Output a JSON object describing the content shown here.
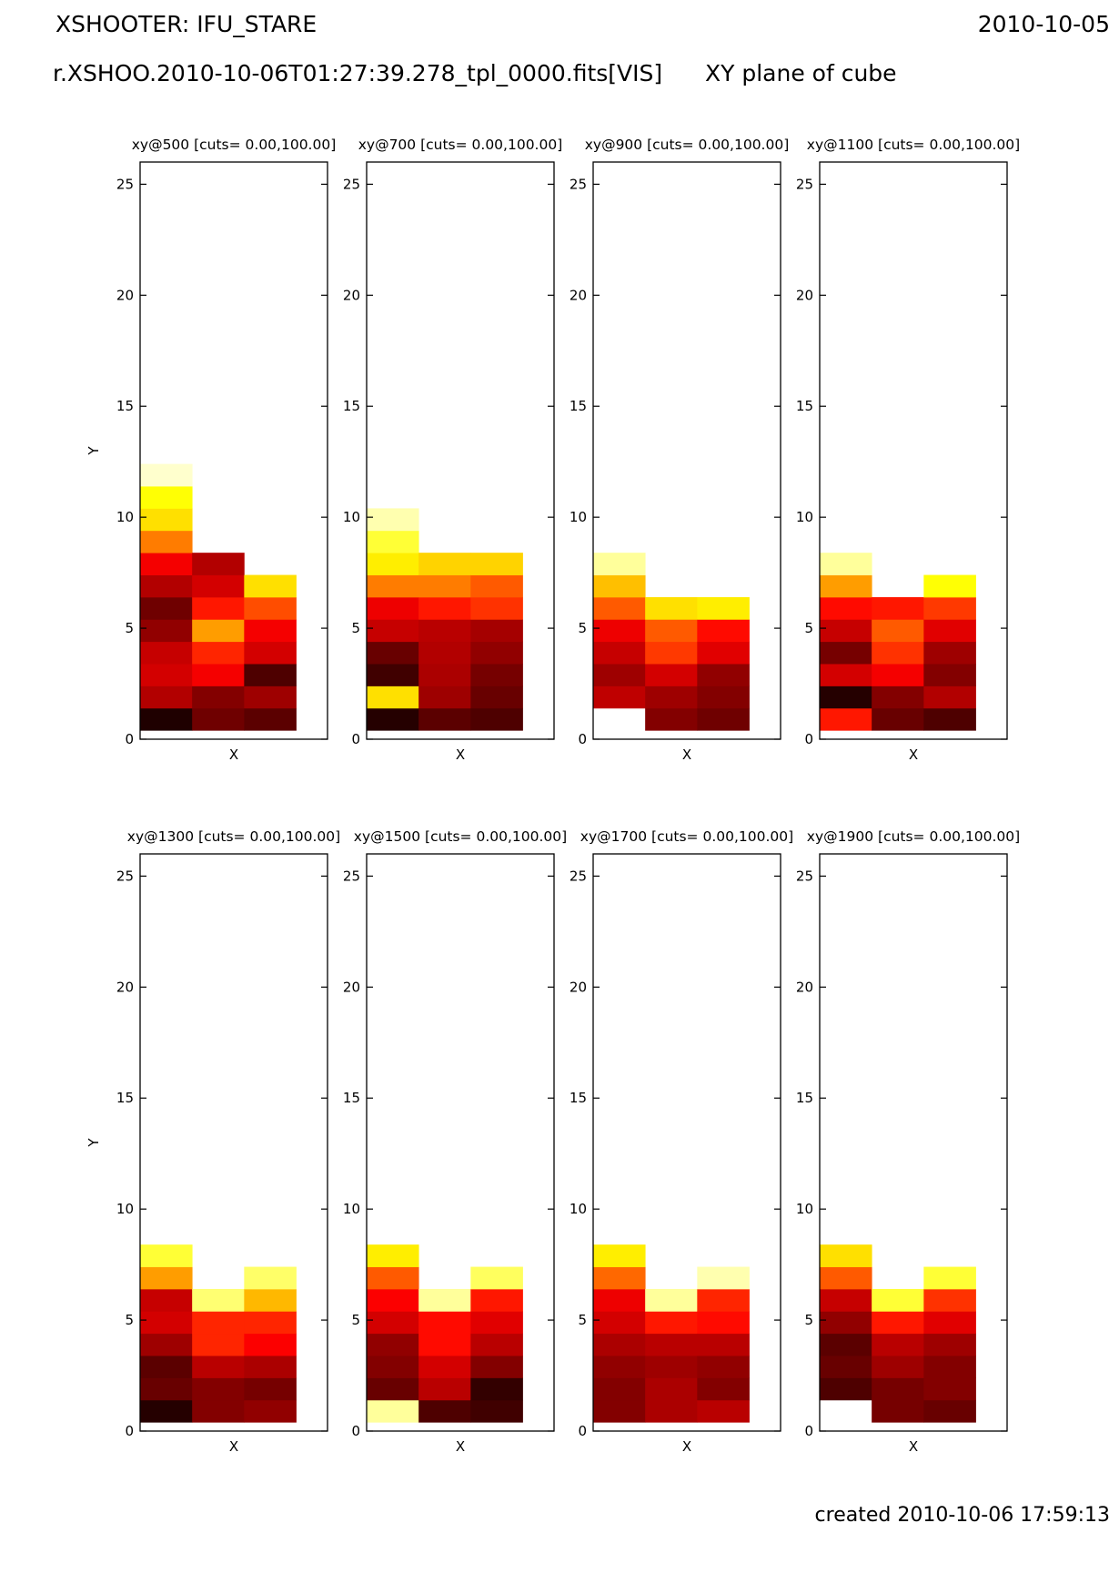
{
  "header": {
    "title": "XSHOOTER: IFU_STARE",
    "date": "2010-10-05",
    "file": "r.XSHOO.2010-10-06T01:27:39.278_tpl_0000.fits[VIS]",
    "plane": "XY plane of cube"
  },
  "footer": {
    "created": "created 2010-10-06 17:59:13"
  },
  "colors": {
    "map": "hot"
  },
  "chart_data": [
    {
      "type": "heatmap",
      "title": "xy@500 [cuts= 0.00,100.00]",
      "xlabel": "X",
      "ylabel": "Y",
      "xlim": [
        0,
        1.2
      ],
      "ylim": [
        0,
        26
      ],
      "yticks": [
        0,
        5,
        10,
        15,
        20,
        25
      ],
      "cuts": [
        0,
        100
      ],
      "columns_left_to_right": [
        [
          3,
          25,
          30,
          28,
          20,
          15,
          25,
          35,
          55,
          70,
          75,
          95,
          100,
          100,
          100,
          100,
          100,
          100,
          100,
          100,
          100,
          100,
          100,
          100,
          100,
          100
        ],
        [
          15,
          18,
          35,
          42,
          60,
          40,
          30,
          25,
          100,
          100,
          100,
          100,
          100,
          100,
          100,
          100,
          100,
          100,
          100,
          100,
          100,
          100,
          100,
          100,
          100,
          100
        ],
        [
          12,
          22,
          10,
          30,
          35,
          48,
          70,
          100,
          100,
          100,
          100,
          100,
          100,
          100,
          100,
          100,
          100,
          100,
          100,
          100,
          100,
          100,
          100,
          100,
          100,
          100
        ]
      ],
      "notes": "bottom-to-top rows 0..25; column order left X bin, middle, right"
    },
    {
      "type": "heatmap",
      "title": "xy@700 [cuts= 0.00,100.00]",
      "xlabel": "X",
      "ylabel": "",
      "xlim": [
        0,
        1.2
      ],
      "ylim": [
        0,
        26
      ],
      "yticks": [
        0,
        5,
        10,
        15,
        20,
        25
      ],
      "cuts": [
        0,
        100
      ],
      "columns_left_to_right": [
        [
          4,
          70,
          8,
          14,
          28,
          34,
          55,
          72,
          80,
          92,
          100,
          100,
          100,
          100,
          100,
          100,
          100,
          100,
          100,
          100,
          100,
          100,
          100,
          100,
          100,
          100
        ],
        [
          12,
          22,
          24,
          25,
          26,
          40,
          55,
          68,
          100,
          100,
          100,
          100,
          100,
          100,
          100,
          100,
          100,
          100,
          100,
          100,
          100,
          100,
          100,
          100,
          100,
          100
        ],
        [
          10,
          14,
          16,
          20,
          23,
          44,
          50,
          68,
          100,
          100,
          100,
          100,
          100,
          100,
          100,
          100,
          100,
          100,
          100,
          100,
          100,
          100,
          100,
          100,
          100,
          100
        ]
      ]
    },
    {
      "type": "heatmap",
      "title": "xy@900 [cuts= 0.00,100.00]",
      "xlabel": "X",
      "ylabel": "",
      "xlim": [
        0,
        1.2
      ],
      "ylim": [
        0,
        26
      ],
      "yticks": [
        0,
        5,
        10,
        15,
        20,
        25
      ],
      "cuts": [
        0,
        100
      ],
      "columns_left_to_right": [
        [
          100,
          27,
          22,
          28,
          34,
          50,
          65,
          90,
          100,
          100,
          100,
          100,
          100,
          100,
          100,
          100,
          100,
          100,
          100,
          100,
          100,
          100,
          100,
          100,
          100,
          100
        ],
        [
          18,
          22,
          30,
          45,
          50,
          70,
          100,
          100,
          100,
          100,
          100,
          100,
          100,
          100,
          100,
          100,
          100,
          100,
          100,
          100,
          100,
          100,
          100,
          100,
          100,
          100
        ],
        [
          15,
          18,
          20,
          32,
          38,
          72,
          100,
          100,
          100,
          100,
          100,
          100,
          100,
          100,
          100,
          100,
          100,
          100,
          100,
          100,
          100,
          100,
          100,
          100,
          100,
          100
        ]
      ]
    },
    {
      "type": "heatmap",
      "title": "xy@1100 [cuts= 0.00,100.00]",
      "xlabel": "X",
      "ylabel": "",
      "xlim": [
        0,
        1.2
      ],
      "ylim": [
        0,
        26
      ],
      "yticks": [
        0,
        5,
        10,
        15,
        20,
        25
      ],
      "cuts": [
        0,
        100
      ],
      "columns_left_to_right": [
        [
          40,
          4,
          30,
          16,
          28,
          38,
          60,
          90,
          100,
          100,
          100,
          100,
          100,
          100,
          100,
          100,
          100,
          100,
          100,
          100,
          100,
          100,
          100,
          100,
          100,
          100
        ],
        [
          14,
          18,
          35,
          44,
          50,
          40,
          100,
          100,
          100,
          100,
          100,
          100,
          100,
          100,
          100,
          100,
          100,
          100,
          100,
          100,
          100,
          100,
          100,
          100,
          100,
          100
        ],
        [
          10,
          25,
          18,
          22,
          32,
          45,
          75,
          100,
          100,
          100,
          100,
          100,
          100,
          100,
          100,
          100,
          100,
          100,
          100,
          100,
          100,
          100,
          100,
          100,
          100,
          100
        ]
      ]
    },
    {
      "type": "heatmap",
      "title": "xy@1300 [cuts= 0.00,100.00]",
      "xlabel": "X",
      "ylabel": "Y",
      "xlim": [
        0,
        1.2
      ],
      "ylim": [
        0,
        26
      ],
      "yticks": [
        0,
        5,
        10,
        15,
        20,
        25
      ],
      "cuts": [
        0,
        100
      ],
      "columns_left_to_right": [
        [
          4,
          14,
          12,
          22,
          30,
          28,
          60,
          80,
          100,
          100,
          100,
          100,
          100,
          100,
          100,
          100,
          100,
          100,
          100,
          100,
          100,
          100,
          100,
          100,
          100,
          100
        ],
        [
          18,
          18,
          26,
          42,
          42,
          86,
          100,
          100,
          100,
          100,
          100,
          100,
          100,
          100,
          100,
          100,
          100,
          100,
          100,
          100,
          100,
          100,
          100,
          100,
          100,
          100
        ],
        [
          20,
          16,
          24,
          36,
          42,
          64,
          85,
          100,
          100,
          100,
          100,
          100,
          100,
          100,
          100,
          100,
          100,
          100,
          100,
          100,
          100,
          100,
          100,
          100,
          100,
          100
        ]
      ]
    },
    {
      "type": "heatmap",
      "title": "xy@1500 [cuts= 0.00,100.00]",
      "xlabel": "X",
      "ylabel": "",
      "xlim": [
        0,
        1.2
      ],
      "ylim": [
        0,
        26
      ],
      "yticks": [
        0,
        5,
        10,
        15,
        20,
        25
      ],
      "cuts": [
        0,
        100
      ],
      "columns_left_to_right": [
        [
          90,
          14,
          18,
          20,
          30,
          36,
          50,
          72,
          100,
          100,
          100,
          100,
          100,
          100,
          100,
          100,
          100,
          100,
          100,
          100,
          100,
          100,
          100,
          100,
          100,
          100
        ],
        [
          10,
          26,
          30,
          38,
          38,
          90,
          100,
          100,
          100,
          100,
          100,
          100,
          100,
          100,
          100,
          100,
          100,
          100,
          100,
          100,
          100,
          100,
          100,
          100,
          100,
          100
        ],
        [
          8,
          6,
          18,
          26,
          32,
          40,
          84,
          100,
          100,
          100,
          100,
          100,
          100,
          100,
          100,
          100,
          100,
          100,
          100,
          100,
          100,
          100,
          100,
          100,
          100,
          100
        ]
      ]
    },
    {
      "type": "heatmap",
      "title": "xy@1700 [cuts= 0.00,100.00]",
      "xlabel": "X",
      "ylabel": "",
      "xlim": [
        0,
        1.2
      ],
      "ylim": [
        0,
        26
      ],
      "yticks": [
        0,
        5,
        10,
        15,
        20,
        25
      ],
      "cuts": [
        0,
        100
      ],
      "columns_left_to_right": [
        [
          18,
          18,
          20,
          24,
          30,
          34,
          52,
          72,
          100,
          100,
          100,
          100,
          100,
          100,
          100,
          100,
          100,
          100,
          100,
          100,
          100,
          100,
          100,
          100,
          100,
          100
        ],
        [
          24,
          24,
          22,
          26,
          40,
          90,
          100,
          100,
          100,
          100,
          100,
          100,
          100,
          100,
          100,
          100,
          100,
          100,
          100,
          100,
          100,
          100,
          100,
          100,
          100,
          100
        ],
        [
          26,
          18,
          20,
          26,
          38,
          42,
          92,
          100,
          100,
          100,
          100,
          100,
          100,
          100,
          100,
          100,
          100,
          100,
          100,
          100,
          100,
          100,
          100,
          100,
          100,
          100
        ]
      ]
    },
    {
      "type": "heatmap",
      "title": "xy@1900 [cuts= 0.00,100.00]",
      "xlabel": "X",
      "ylabel": "",
      "xlim": [
        0,
        1.2
      ],
      "ylim": [
        0,
        26
      ],
      "yticks": [
        0,
        5,
        10,
        15,
        20,
        25
      ],
      "cuts": [
        0,
        100
      ],
      "columns_left_to_right": [
        [
          100,
          10,
          14,
          12,
          20,
          28,
          50,
          70,
          100,
          100,
          100,
          100,
          100,
          100,
          100,
          100,
          100,
          100,
          100,
          100,
          100,
          100,
          100,
          100,
          100,
          100
        ],
        [
          16,
          16,
          22,
          26,
          40,
          80,
          100,
          100,
          100,
          100,
          100,
          100,
          100,
          100,
          100,
          100,
          100,
          100,
          100,
          100,
          100,
          100,
          100,
          100,
          100,
          100
        ],
        [
          14,
          18,
          18,
          22,
          32,
          44,
          80,
          100,
          100,
          100,
          100,
          100,
          100,
          100,
          100,
          100,
          100,
          100,
          100,
          100,
          100,
          100,
          100,
          100,
          100,
          100
        ]
      ]
    }
  ]
}
